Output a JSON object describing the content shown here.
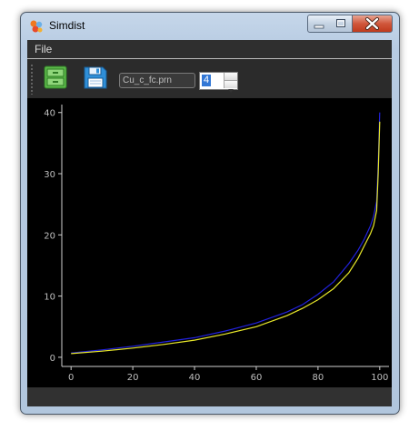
{
  "window": {
    "title": "Simdist",
    "icon": "simdist-app-icon",
    "controls": [
      "minimize-icon",
      "maximize-icon",
      "close-icon"
    ]
  },
  "menubar": {
    "items": [
      {
        "label": "File"
      }
    ]
  },
  "toolbar": {
    "buttons": [
      {
        "icon": "open-cabinet-icon",
        "color": "#5cba4a"
      },
      {
        "icon": "save-floppy-icon",
        "color": "#2f8fd8"
      }
    ],
    "file_name": "Cu_c_fc.prn",
    "spin_value": "4"
  },
  "chart_data": {
    "type": "line",
    "title": "",
    "xlabel": "",
    "ylabel": "",
    "xlim": [
      -3,
      103
    ],
    "ylim": [
      -1.5,
      41
    ],
    "xticks": [
      0,
      20,
      40,
      60,
      80,
      100
    ],
    "yticks": [
      0,
      10,
      20,
      30,
      40
    ],
    "grid": false,
    "background": "#000000",
    "axis_color": "#d0d0d0",
    "series": [
      {
        "color": "#2222dd",
        "x": [
          0,
          10,
          20,
          30,
          40,
          50,
          60,
          70,
          75,
          80,
          85,
          90,
          93,
          95,
          97,
          98,
          99,
          99.5,
          100
        ],
        "y": [
          0.7,
          1.2,
          1.8,
          2.5,
          3.2,
          4.3,
          5.6,
          7.4,
          8.6,
          10.3,
          12.3,
          15.3,
          17.5,
          19.3,
          21.5,
          23.0,
          25.5,
          31.5,
          40.0
        ]
      },
      {
        "color": "#e8e82a",
        "x": [
          0,
          10,
          20,
          30,
          40,
          50,
          60,
          70,
          75,
          80,
          85,
          90,
          93,
          95,
          97,
          98,
          99,
          99.5,
          100
        ],
        "y": [
          0.6,
          1.0,
          1.5,
          2.1,
          2.8,
          3.8,
          5.0,
          6.8,
          8.0,
          9.4,
          11.2,
          13.8,
          16.2,
          18.2,
          20.2,
          21.5,
          24.0,
          30.0,
          38.5
        ]
      }
    ]
  }
}
